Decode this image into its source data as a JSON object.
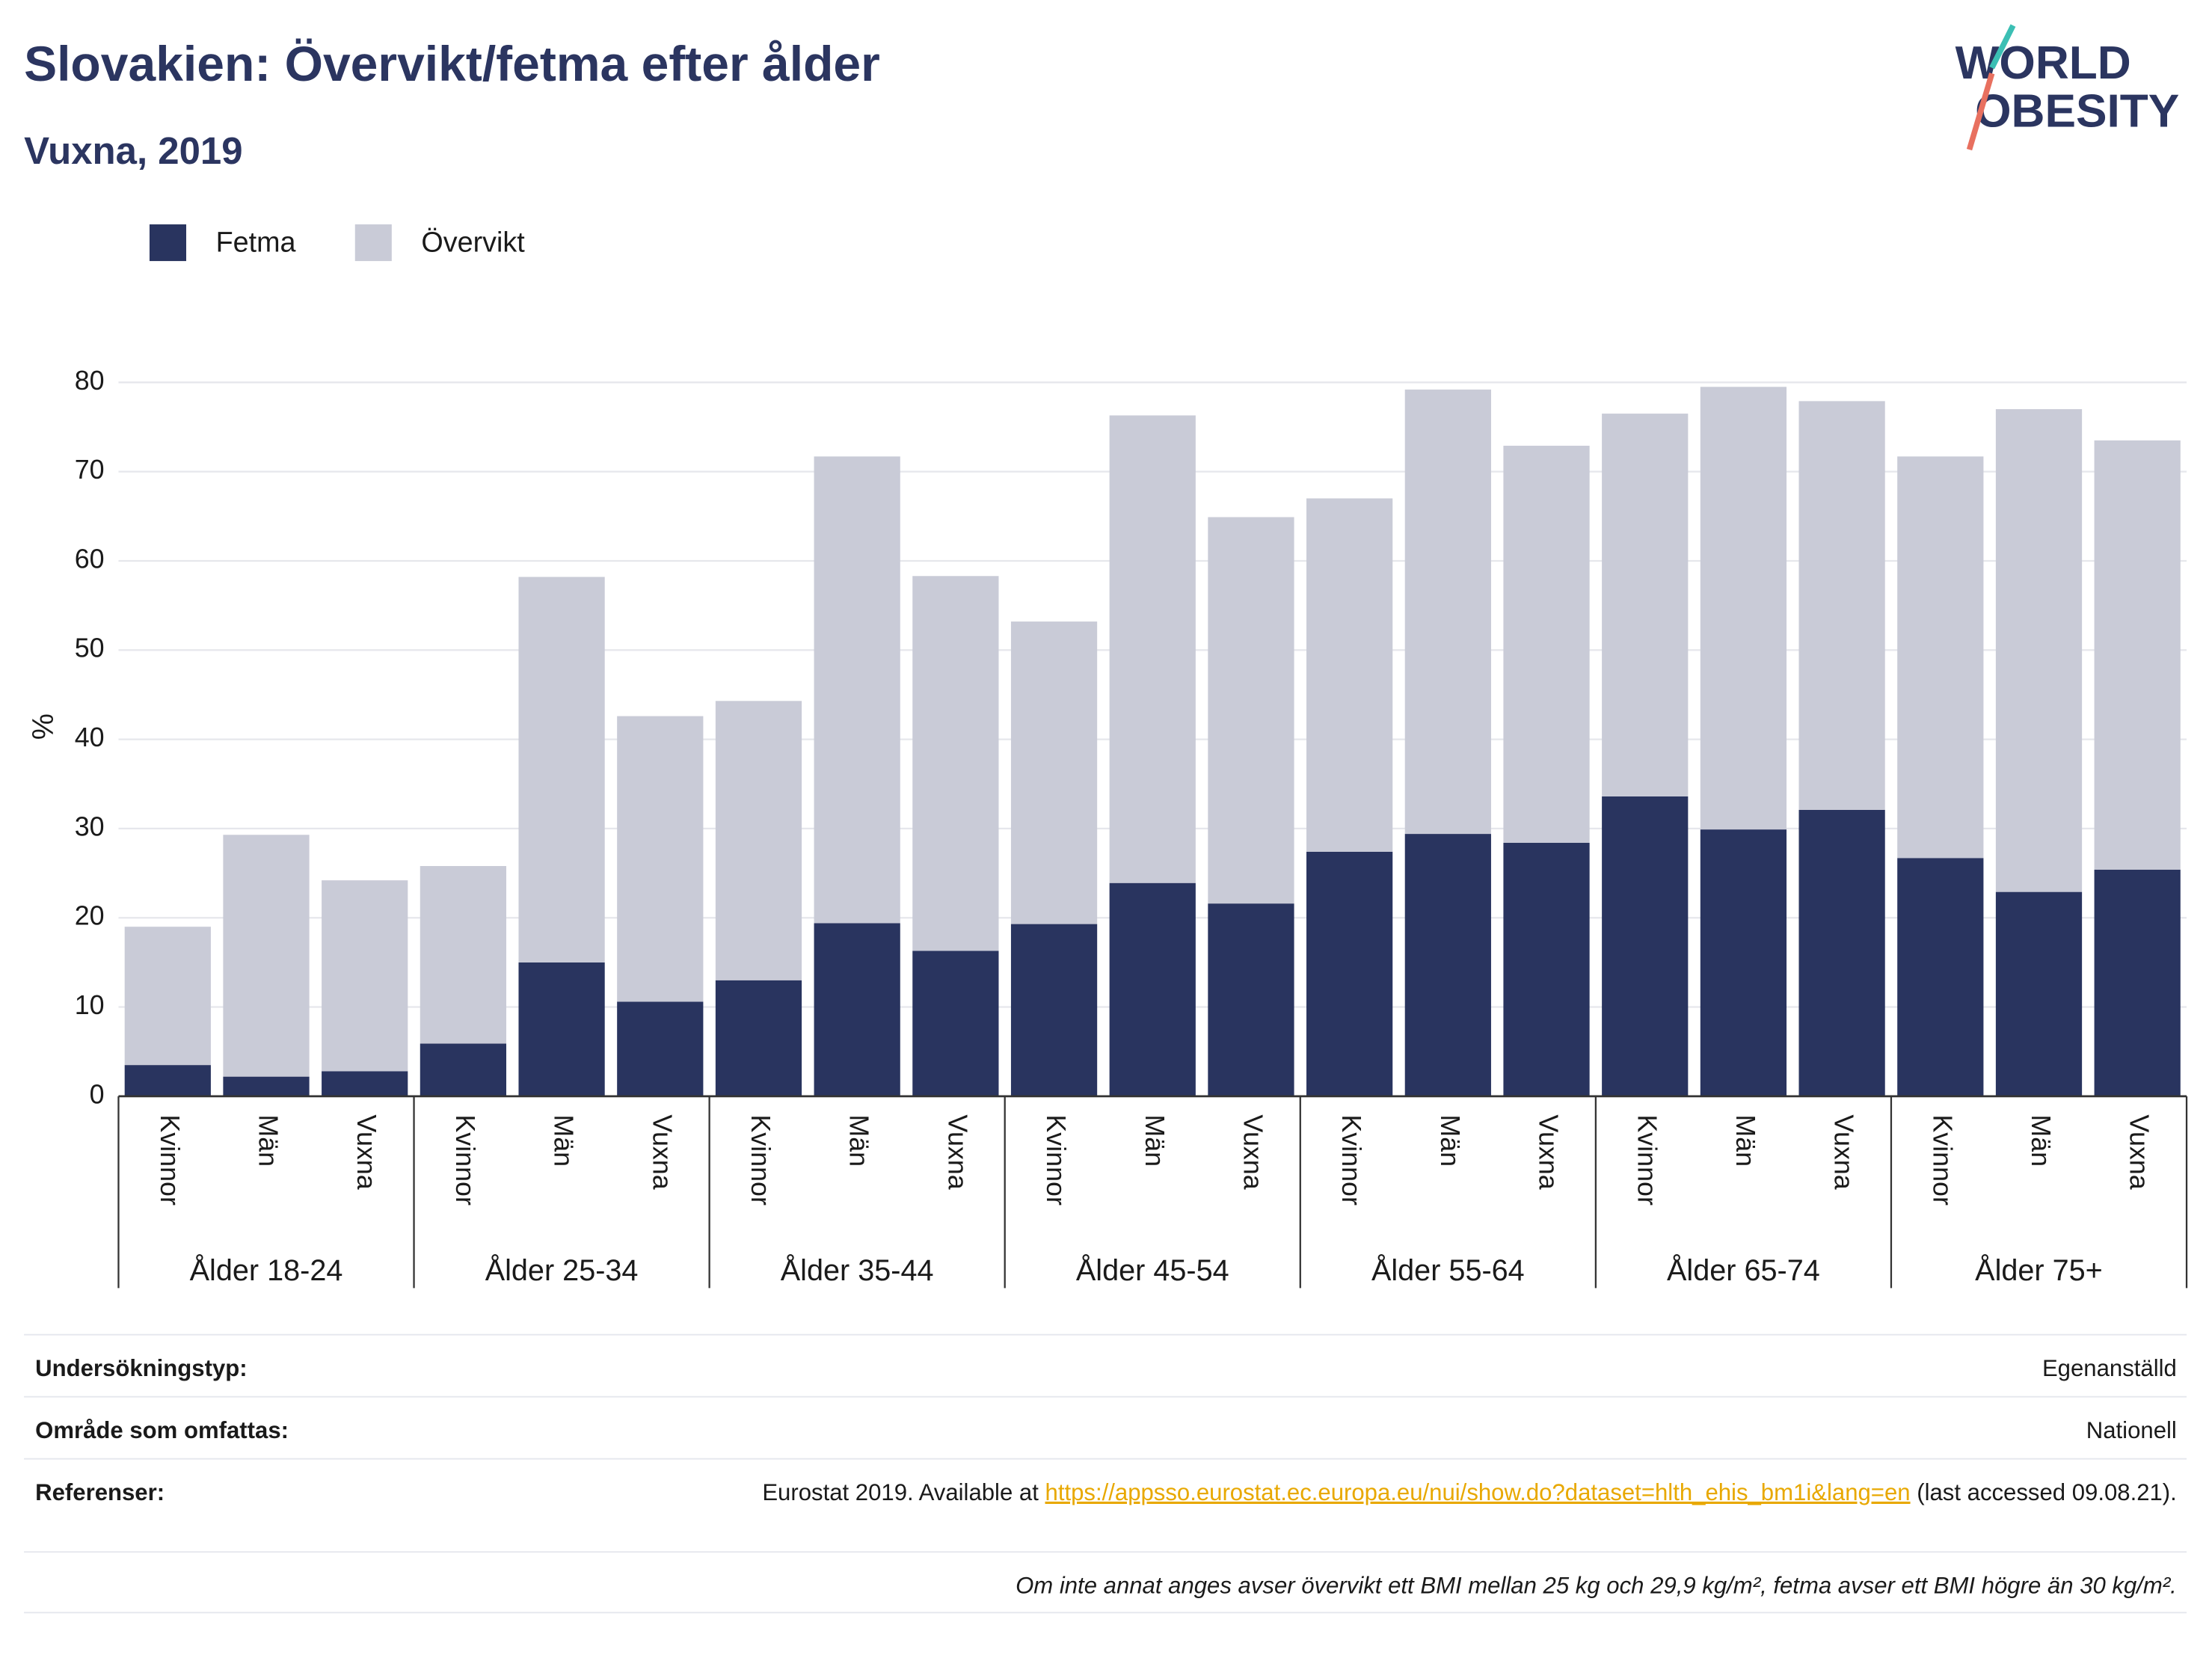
{
  "chart_data": {
    "type": "stacked_bar",
    "title": "Slovakien: Övervikt/fetma efter ålder",
    "subtitle": "Vuxna, 2019",
    "y_label": "%",
    "categories": [
      "Kvinnor",
      "Män",
      "Vuxna",
      "Kvinnor",
      "Män",
      "Vuxna",
      "Kvinnor",
      "Män",
      "Vuxna",
      "Kvinnor",
      "Män",
      "Vuxna",
      "Kvinnor",
      "Män",
      "Vuxna",
      "Kvinnor",
      "Män",
      "Vuxna",
      "Kvinnor",
      "Män",
      "Vuxna"
    ],
    "groups": [
      "Ålder 18-24",
      "Ålder 25-34",
      "Ålder 35-44",
      "Ålder 45-54",
      "Ålder 55-64",
      "Ålder 65-74",
      "Ålder 75+"
    ],
    "series": [
      {
        "name": "Fetma",
        "color": "#29345f",
        "values": [
          3.5,
          2.2,
          2.8,
          5.9,
          15,
          10.6,
          13,
          19.4,
          16.3,
          19.3,
          23.9,
          21.6,
          27.4,
          29.4,
          28.4,
          33.6,
          29.9,
          32.1,
          26.7,
          22.9,
          25.4
        ]
      },
      {
        "name": "Övervikt",
        "color": "#c9cbd7",
        "values": [
          15.5,
          27.1,
          21.4,
          19.9,
          43.2,
          32.0,
          31.3,
          52.3,
          42.0,
          33.9,
          52.4,
          43.3,
          39.6,
          49.8,
          44.5,
          42.9,
          49.6,
          45.8,
          45.0,
          54.1,
          48.1
        ]
      }
    ],
    "ylim": [
      0,
      80
    ],
    "yticks": [
      0,
      10,
      20,
      30,
      40,
      50,
      60,
      70,
      80
    ],
    "grid": true,
    "legend": "top-left"
  },
  "logo": {
    "line1": "WORLD",
    "line2": "OBESITY"
  },
  "footer": {
    "rows": [
      {
        "label": "Undersökningstyp:",
        "value": "Egenanställd"
      },
      {
        "label": "Område som omfattas:",
        "value": "Nationell"
      }
    ],
    "reference": {
      "label": "Referenser:",
      "text_before": "Eurostat 2019. Available at",
      "link": "https://appsso.eurostat.ec.europa.eu/nui/show.do?dataset=hlth_ehis_bm1i&lang=en",
      "text_after": "(last accessed 09.08.21)."
    },
    "note": "Om inte annat anges avser övervikt ett BMI mellan 25 kg och 29,9 kg/m², fetma avser ett BMI högre än 30 kg/m²."
  }
}
